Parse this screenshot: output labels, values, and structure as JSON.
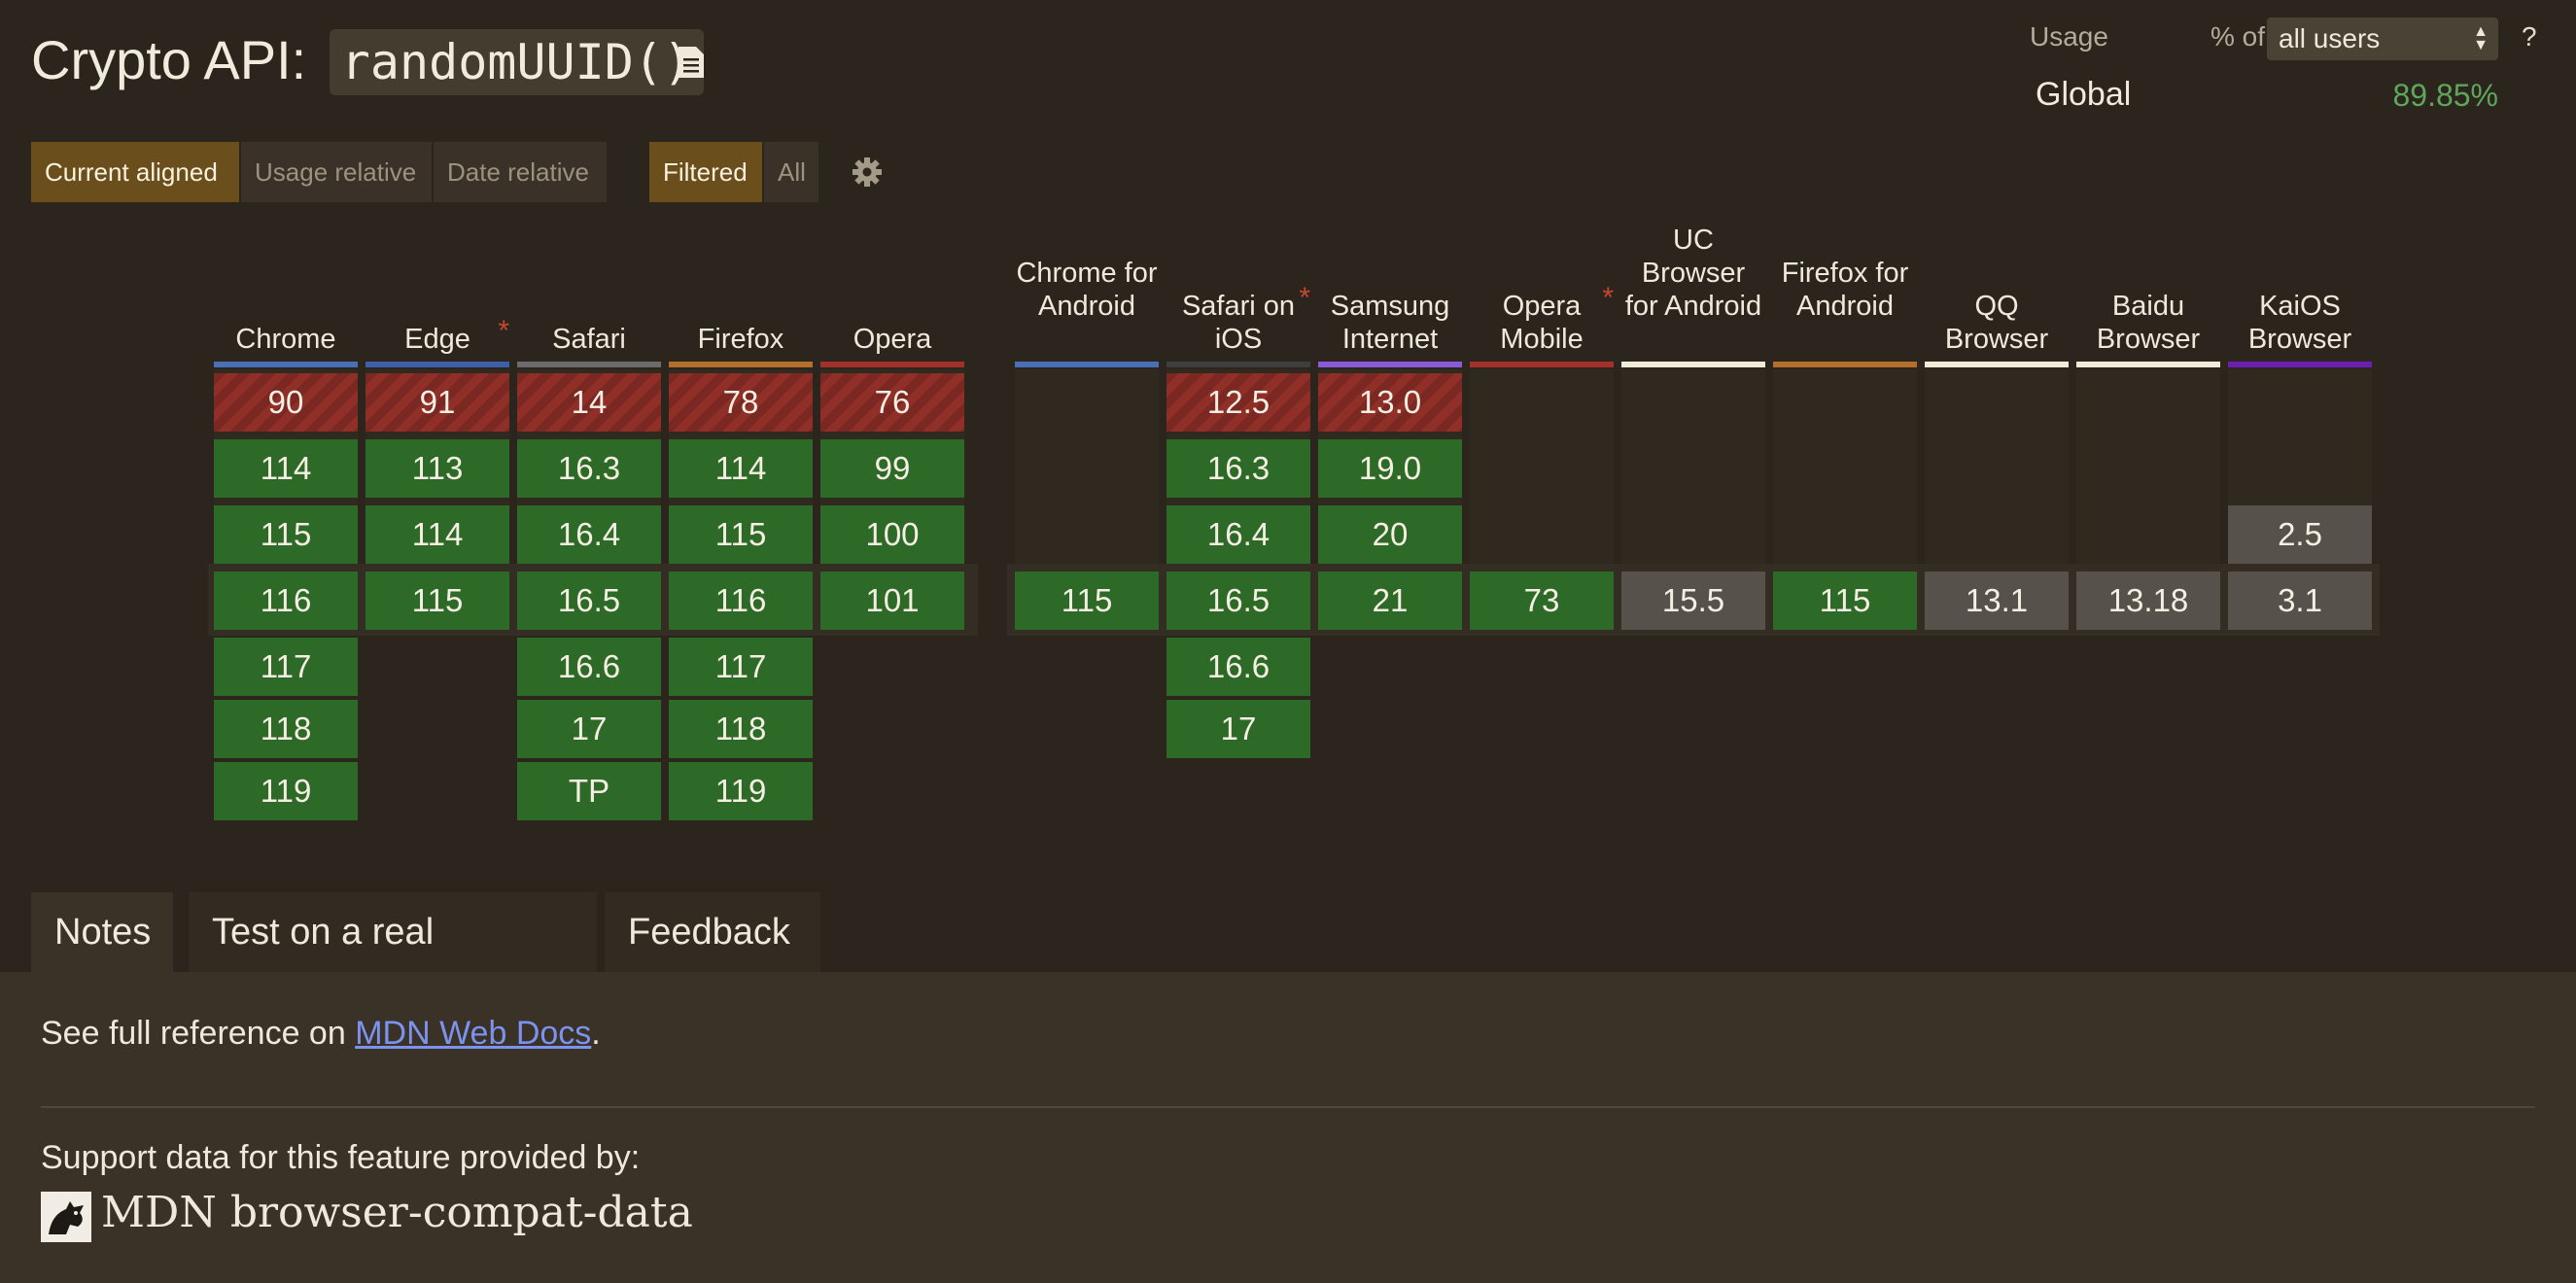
{
  "page": {
    "title_prefix": "Crypto API:",
    "title_code": "randomUUID()"
  },
  "usage": {
    "label": "Usage",
    "pct_of": "% of",
    "selected_users": "all users",
    "help": "?",
    "global_label": "Global",
    "global_pct": "89.85%"
  },
  "toolbar": {
    "current_aligned": "Current aligned",
    "usage_relative": "Usage relative",
    "date_relative": "Date relative",
    "filtered": "Filtered",
    "all": "All"
  },
  "browsers": [
    {
      "name": "Chrome",
      "star": "",
      "bar_color": "#4a6fb5",
      "versions": [
        {
          "v": "90",
          "s": "n"
        },
        {
          "v": "114",
          "s": "y"
        },
        {
          "v": "115",
          "s": "y"
        },
        {
          "v": "116",
          "s": "y"
        },
        {
          "v": "117",
          "s": "y"
        },
        {
          "v": "118",
          "s": "y"
        },
        {
          "v": "119",
          "s": "y"
        }
      ]
    },
    {
      "name": "Edge",
      "star": "*",
      "bar_color": "#3c5fa8",
      "versions": [
        {
          "v": "91",
          "s": "n"
        },
        {
          "v": "113",
          "s": "y"
        },
        {
          "v": "114",
          "s": "y"
        },
        {
          "v": "115",
          "s": "y"
        }
      ]
    },
    {
      "name": "Safari",
      "star": "",
      "bar_color": "#6b6b6b",
      "versions": [
        {
          "v": "14",
          "s": "n"
        },
        {
          "v": "16.3",
          "s": "y"
        },
        {
          "v": "16.4",
          "s": "y"
        },
        {
          "v": "16.5",
          "s": "y"
        },
        {
          "v": "16.6",
          "s": "y"
        },
        {
          "v": "17",
          "s": "y"
        },
        {
          "v": "TP",
          "s": "y"
        }
      ]
    },
    {
      "name": "Firefox",
      "star": "",
      "bar_color": "#b56f2c",
      "versions": [
        {
          "v": "78",
          "s": "n"
        },
        {
          "v": "114",
          "s": "y"
        },
        {
          "v": "115",
          "s": "y"
        },
        {
          "v": "116",
          "s": "y"
        },
        {
          "v": "117",
          "s": "y"
        },
        {
          "v": "118",
          "s": "y"
        },
        {
          "v": "119",
          "s": "y"
        }
      ]
    },
    {
      "name": "Opera",
      "star": "",
      "bar_color": "#a33029",
      "versions": [
        {
          "v": "76",
          "s": "n"
        },
        {
          "v": "99",
          "s": "y"
        },
        {
          "v": "100",
          "s": "y"
        },
        {
          "v": "101",
          "s": "y"
        }
      ]
    },
    {
      "name": "Chrome for Android",
      "star": "",
      "bar_color": "#4a6fb5",
      "versions": [
        {
          "v": "115",
          "s": "y"
        }
      ]
    },
    {
      "name": "Safari on iOS",
      "star": "*",
      "bar_color": "#3e3e3e",
      "versions": [
        {
          "v": "12.5",
          "s": "n"
        },
        {
          "v": "16.3",
          "s": "y"
        },
        {
          "v": "16.4",
          "s": "y"
        },
        {
          "v": "16.5",
          "s": "y"
        },
        {
          "v": "16.6",
          "s": "y"
        },
        {
          "v": "17",
          "s": "y"
        }
      ]
    },
    {
      "name": "Samsung Internet",
      "star": "",
      "bar_color": "#8b5ad8",
      "versions": [
        {
          "v": "13.0",
          "s": "n"
        },
        {
          "v": "19.0",
          "s": "y"
        },
        {
          "v": "20",
          "s": "y"
        },
        {
          "v": "21",
          "s": "y"
        }
      ]
    },
    {
      "name": "Opera Mobile",
      "star": "*",
      "bar_color": "#a33029",
      "versions": [
        {
          "v": "73",
          "s": "y"
        }
      ]
    },
    {
      "name": "UC Browser for Android",
      "star": "",
      "bar_color": "#f2ead8",
      "versions": [
        {
          "v": "15.5",
          "s": "u"
        }
      ]
    },
    {
      "name": "Firefox for Android",
      "star": "",
      "bar_color": "#b56f2c",
      "versions": [
        {
          "v": "115",
          "s": "y"
        }
      ]
    },
    {
      "name": "QQ Browser",
      "star": "",
      "bar_color": "#f2ead8",
      "versions": [
        {
          "v": "13.1",
          "s": "u"
        }
      ]
    },
    {
      "name": "Baidu Browser",
      "star": "",
      "bar_color": "#f2ead8",
      "versions": [
        {
          "v": "13.18",
          "s": "u"
        }
      ]
    },
    {
      "name": "KaiOS Browser",
      "star": "",
      "bar_color": "#6a1fb0",
      "versions": [
        {
          "v": "2.5",
          "s": "u"
        },
        {
          "v": "3.1",
          "s": "u"
        }
      ]
    }
  ],
  "tabs": {
    "notes": "Notes",
    "test": "Test on a real browser",
    "feedback": "Feedback"
  },
  "notes": {
    "prefix": "See full reference on ",
    "link": "MDN Web Docs",
    "suffix": ".",
    "support": "Support data for this feature provided by:",
    "provider": "MDN browser-compat-data"
  }
}
